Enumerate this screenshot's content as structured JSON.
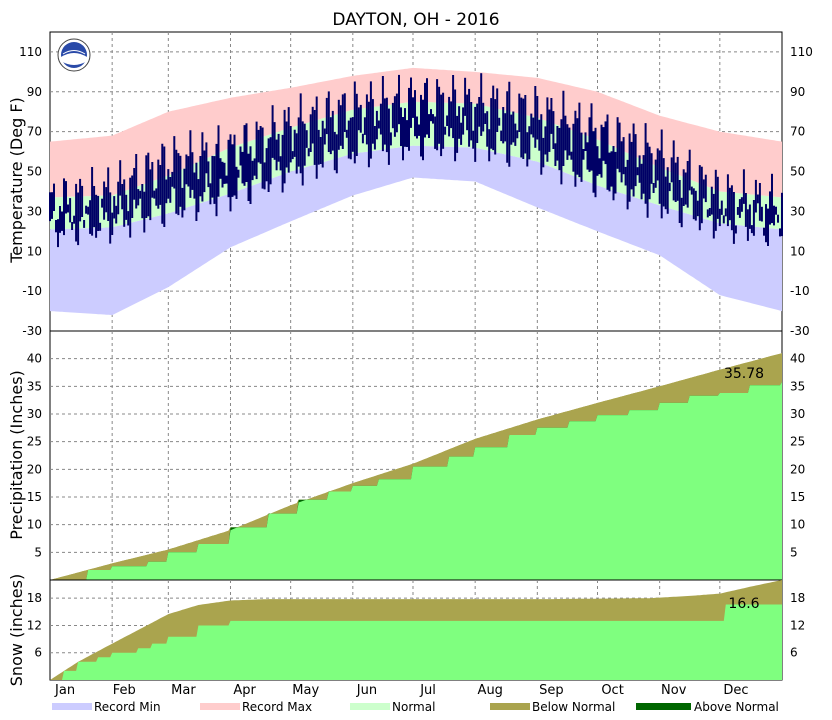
{
  "colors": {
    "record_min": "#ccccff",
    "record_max": "#ffcccc",
    "normal": "#ccffcc",
    "observed": "#000066",
    "below_normal": "#aaa44e",
    "above_normal": "#006600",
    "actual_fill": "#7fff7f",
    "grid": "#888888"
  },
  "chart_data": [
    {
      "type": "area",
      "panel": "temperature",
      "title": "DAYTON, OH - 2016",
      "ylabel": "Temperature (Deg F)",
      "ylim": [
        -30,
        120
      ],
      "y_ticks": [
        -30,
        -10,
        10,
        30,
        50,
        70,
        90,
        110
      ],
      "months": [
        "Jan",
        "Feb",
        "Mar",
        "Apr",
        "May",
        "Jun",
        "Jul",
        "Aug",
        "Sep",
        "Oct",
        "Nov",
        "Dec"
      ],
      "x_unit": "day_of_year",
      "anchor_days": [
        1,
        32,
        60,
        91,
        121,
        152,
        182,
        213,
        244,
        274,
        305,
        335,
        366
      ],
      "normal_high": [
        37,
        38,
        48,
        62,
        72,
        81,
        85,
        84,
        77,
        66,
        52,
        40,
        37
      ],
      "normal_low": [
        21,
        22,
        29,
        39,
        50,
        59,
        63,
        62,
        55,
        43,
        33,
        24,
        21
      ],
      "record_high": [
        65,
        68,
        80,
        87,
        92,
        98,
        102,
        100,
        97,
        90,
        78,
        70,
        65
      ],
      "record_low": [
        -20,
        -22,
        -8,
        12,
        25,
        38,
        47,
        45,
        32,
        20,
        8,
        -12,
        -20
      ],
      "observed_high": [
        34,
        40,
        55,
        60,
        73,
        82,
        86,
        85,
        80,
        70,
        58,
        38,
        34
      ],
      "observed_low": [
        22,
        25,
        33,
        40,
        52,
        62,
        66,
        66,
        60,
        47,
        36,
        26,
        22
      ],
      "legend": [
        "Record Min",
        "Record Max",
        "Normal",
        "Below Normal",
        "Above Normal"
      ]
    },
    {
      "type": "area",
      "panel": "precipitation",
      "ylabel": "Precipitation (Inches)",
      "ylim": [
        0,
        45
      ],
      "y_ticks": [
        5,
        10,
        15,
        20,
        25,
        30,
        35,
        40
      ],
      "x_unit": "day_of_year",
      "normal_cumulative_days": [
        1,
        32,
        60,
        91,
        121,
        152,
        182,
        213,
        244,
        274,
        305,
        335,
        366
      ],
      "normal_cumulative": [
        0,
        3.0,
        5.5,
        9.0,
        13.5,
        17.5,
        21.0,
        25.5,
        29.0,
        32.0,
        35.0,
        38.0,
        41.0
      ],
      "actual_cumulative_days": [
        1,
        20,
        32,
        50,
        60,
        75,
        91,
        110,
        125,
        140,
        152,
        165,
        182,
        200,
        213,
        230,
        244,
        260,
        274,
        290,
        305,
        320,
        335,
        350,
        366
      ],
      "actual_cumulative": [
        0,
        1.8,
        2.5,
        3.3,
        5.0,
        6.5,
        9.5,
        12.0,
        14.5,
        16.0,
        17.0,
        18.2,
        20.5,
        22.3,
        24.0,
        26.2,
        27.5,
        28.7,
        29.8,
        30.7,
        32.0,
        33.3,
        33.8,
        35.2,
        35.78
      ],
      "total_label": "35.78"
    },
    {
      "type": "area",
      "panel": "snow",
      "ylabel": "Snow (inches)",
      "ylim": [
        0,
        22
      ],
      "y_ticks": [
        6,
        12,
        18
      ],
      "x_unit": "day_of_year",
      "normal_cumulative_days": [
        1,
        15,
        32,
        45,
        60,
        75,
        91,
        110,
        150,
        200,
        250,
        300,
        320,
        335,
        350,
        366
      ],
      "normal_cumulative": [
        0,
        4.0,
        8.0,
        11.0,
        14.5,
        16.5,
        17.5,
        17.8,
        17.8,
        17.8,
        17.8,
        18.0,
        18.5,
        19.0,
        20.5,
        22.0
      ],
      "actual_cumulative_days": [
        1,
        8,
        15,
        25,
        32,
        45,
        52,
        60,
        75,
        91,
        120,
        200,
        300,
        334,
        338,
        366
      ],
      "actual_cumulative": [
        0,
        2.0,
        4.0,
        5.0,
        6.0,
        7.0,
        8.0,
        9.5,
        12.0,
        13.0,
        13.0,
        13.0,
        13.0,
        13.0,
        16.6,
        16.6
      ],
      "total_label": "16.6"
    }
  ]
}
